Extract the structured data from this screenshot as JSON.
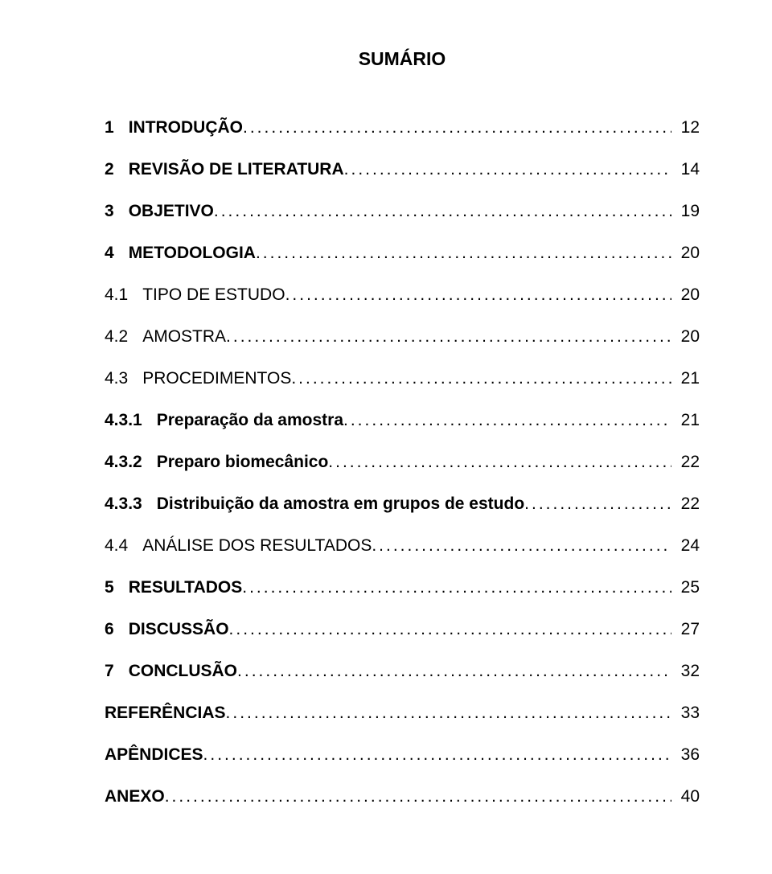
{
  "title": "SUMÁRIO",
  "text_color": "#000000",
  "background_color": "#ffffff",
  "title_fontsize": 23,
  "row_fontsize": 21,
  "entries": [
    {
      "num": "1",
      "label": "INTRODUÇÃO",
      "page": "12",
      "bold": true
    },
    {
      "num": "2",
      "label": "REVISÃO DE LITERATURA",
      "page": "14",
      "bold": true
    },
    {
      "num": "3",
      "label": "OBJETIVO",
      "page": "19",
      "bold": true
    },
    {
      "num": "4",
      "label": "METODOLOGIA",
      "page": "20",
      "bold": true
    },
    {
      "num": "4.1",
      "label": "TIPO DE ESTUDO",
      "page": "20",
      "bold": false
    },
    {
      "num": "4.2",
      "label": "AMOSTRA",
      "page": "20",
      "bold": false
    },
    {
      "num": "4.3",
      "label": "PROCEDIMENTOS",
      "page": "21",
      "bold": false
    },
    {
      "num": "4.3.1",
      "label": "Preparação da amostra",
      "page": "21",
      "bold": true
    },
    {
      "num": "4.3.2",
      "label": "Preparo biomecânico",
      "page": "22",
      "bold": true
    },
    {
      "num": "4.3.3",
      "label": "Distribuição da amostra em grupos de estudo",
      "page": "22",
      "bold": true
    },
    {
      "num": "4.4",
      "label": "ANÁLISE DOS RESULTADOS",
      "page": "24",
      "bold": false
    },
    {
      "num": "5",
      "label": "RESULTADOS",
      "page": "25",
      "bold": true
    },
    {
      "num": "6",
      "label": "DISCUSSÃO",
      "page": "27",
      "bold": true
    },
    {
      "num": "7",
      "label": "CONCLUSÃO",
      "page": "32",
      "bold": true
    },
    {
      "num": "",
      "label": "REFERÊNCIAS",
      "page": "33",
      "bold": true
    },
    {
      "num": "",
      "label": "APÊNDICES",
      "page": "36",
      "bold": true
    },
    {
      "num": "",
      "label": "ANEXO",
      "page": "40",
      "bold": true
    }
  ]
}
